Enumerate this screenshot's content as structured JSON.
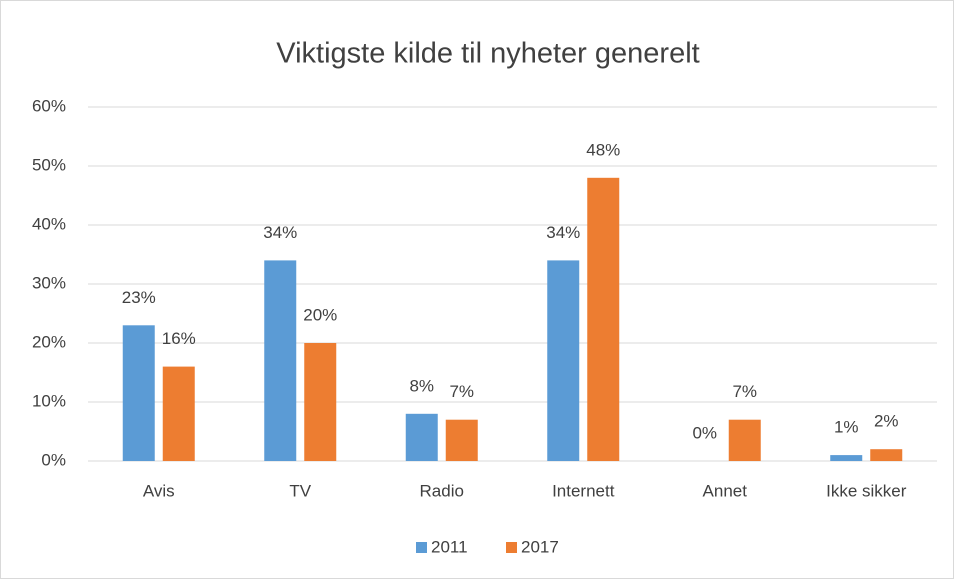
{
  "chart_data": {
    "type": "bar",
    "title": "Viktigste kilde til nyheter generelt",
    "categories": [
      "Avis",
      "TV",
      "Radio",
      "Internett",
      "Annet",
      "Ikke sikker"
    ],
    "series": [
      {
        "name": "2011",
        "color": "#5b9bd5",
        "values": [
          23,
          34,
          8,
          34,
          0,
          1
        ],
        "value_labels": [
          "23%",
          "34%",
          "8%",
          "34%",
          "0%",
          "1%"
        ]
      },
      {
        "name": "2017",
        "color": "#ed7d31",
        "values": [
          16,
          20,
          7,
          48,
          7,
          2
        ],
        "value_labels": [
          "16%",
          "20%",
          "7%",
          "48%",
          "7%",
          "2%"
        ]
      }
    ],
    "ylim": [
      0,
      60
    ],
    "yticks": [
      {
        "value": 0,
        "label": "0%"
      },
      {
        "value": 10,
        "label": "10%"
      },
      {
        "value": 20,
        "label": "20%"
      },
      {
        "value": 30,
        "label": "30%"
      },
      {
        "value": 40,
        "label": "40%"
      },
      {
        "value": 50,
        "label": "50%"
      },
      {
        "value": 60,
        "label": "60%"
      }
    ],
    "grid": true,
    "legend": "bottom"
  }
}
